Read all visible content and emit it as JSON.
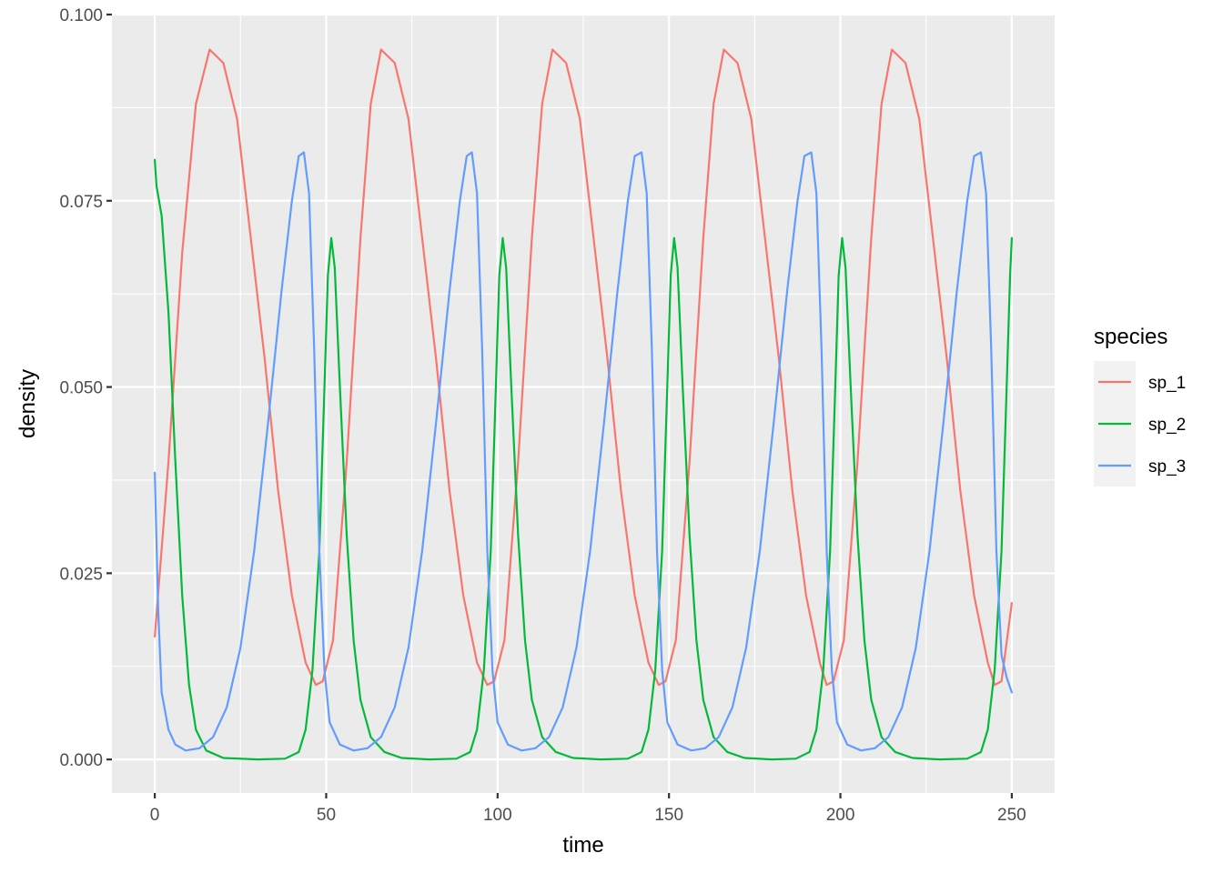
{
  "chart_data": {
    "type": "line",
    "title": "",
    "xlabel": "time",
    "ylabel": "density",
    "xlim": [
      -12.5,
      262.5
    ],
    "ylim": [
      -0.0045,
      0.1
    ],
    "x_ticks": [
      0,
      50,
      100,
      150,
      200,
      250
    ],
    "x_tick_labels": [
      "0",
      "50",
      "100",
      "150",
      "200",
      "250"
    ],
    "y_ticks": [
      0,
      0.025,
      0.05,
      0.075,
      0.1
    ],
    "y_tick_labels": [
      "0.000",
      "0.025",
      "0.050",
      "0.075",
      "0.100"
    ],
    "grid": true,
    "legend_title": "species",
    "legend_position": "right",
    "series": [
      {
        "name": "sp_1",
        "color": "#F8766D",
        "points": [
          [
            0,
            0.0165
          ],
          [
            4,
            0.04
          ],
          [
            8,
            0.068
          ],
          [
            12,
            0.088
          ],
          [
            16,
            0.0953
          ],
          [
            20,
            0.0935
          ],
          [
            24,
            0.086
          ],
          [
            28,
            0.07
          ],
          [
            32,
            0.054
          ],
          [
            36,
            0.036
          ],
          [
            40,
            0.022
          ],
          [
            44,
            0.013
          ],
          [
            47,
            0.01
          ],
          [
            49,
            0.0105
          ],
          [
            52,
            0.016
          ],
          [
            56,
            0.04
          ],
          [
            60,
            0.07
          ],
          [
            63,
            0.088
          ],
          [
            66,
            0.0953
          ],
          [
            70,
            0.0935
          ],
          [
            74,
            0.086
          ],
          [
            78,
            0.07
          ],
          [
            82,
            0.054
          ],
          [
            86,
            0.036
          ],
          [
            90,
            0.022
          ],
          [
            94,
            0.013
          ],
          [
            97,
            0.01
          ],
          [
            99,
            0.0105
          ],
          [
            102,
            0.016
          ],
          [
            106,
            0.04
          ],
          [
            110,
            0.07
          ],
          [
            113,
            0.088
          ],
          [
            116,
            0.0953
          ],
          [
            120,
            0.0935
          ],
          [
            124,
            0.086
          ],
          [
            128,
            0.07
          ],
          [
            132,
            0.054
          ],
          [
            136,
            0.036
          ],
          [
            140,
            0.022
          ],
          [
            144,
            0.013
          ],
          [
            147,
            0.01
          ],
          [
            149,
            0.0105
          ],
          [
            152,
            0.016
          ],
          [
            156,
            0.04
          ],
          [
            160,
            0.07
          ],
          [
            163,
            0.088
          ],
          [
            166,
            0.0953
          ],
          [
            170,
            0.0935
          ],
          [
            174,
            0.086
          ],
          [
            178,
            0.07
          ],
          [
            182,
            0.054
          ],
          [
            186,
            0.036
          ],
          [
            190,
            0.022
          ],
          [
            194,
            0.013
          ],
          [
            196,
            0.01
          ],
          [
            198,
            0.0105
          ],
          [
            201,
            0.016
          ],
          [
            205,
            0.04
          ],
          [
            209,
            0.07
          ],
          [
            212,
            0.088
          ],
          [
            215,
            0.0953
          ],
          [
            219,
            0.0935
          ],
          [
            223,
            0.086
          ],
          [
            227,
            0.07
          ],
          [
            231,
            0.054
          ],
          [
            235,
            0.036
          ],
          [
            239,
            0.022
          ],
          [
            243,
            0.013
          ],
          [
            245,
            0.01
          ],
          [
            247,
            0.0105
          ],
          [
            250,
            0.021
          ]
        ]
      },
      {
        "name": "sp_2",
        "color": "#00BA38",
        "points": [
          [
            0,
            0.0805
          ],
          [
            0.5,
            0.077
          ],
          [
            2,
            0.073
          ],
          [
            4,
            0.06
          ],
          [
            6,
            0.04
          ],
          [
            8,
            0.022
          ],
          [
            10,
            0.01
          ],
          [
            12,
            0.004
          ],
          [
            15,
            0.0012
          ],
          [
            20,
            0.0002
          ],
          [
            30,
            0.0
          ],
          [
            38,
            0.0001
          ],
          [
            42,
            0.001
          ],
          [
            44,
            0.004
          ],
          [
            46,
            0.012
          ],
          [
            48,
            0.028
          ],
          [
            49.5,
            0.05
          ],
          [
            50.5,
            0.065
          ],
          [
            51.5,
            0.07
          ],
          [
            52.5,
            0.066
          ],
          [
            54,
            0.05
          ],
          [
            56,
            0.03
          ],
          [
            58,
            0.016
          ],
          [
            60,
            0.008
          ],
          [
            63,
            0.003
          ],
          [
            67,
            0.001
          ],
          [
            72,
            0.0002
          ],
          [
            80,
            0.0
          ],
          [
            88,
            0.0001
          ],
          [
            92,
            0.001
          ],
          [
            94,
            0.004
          ],
          [
            96,
            0.012
          ],
          [
            98,
            0.028
          ],
          [
            99.5,
            0.05
          ],
          [
            100.5,
            0.065
          ],
          [
            101.5,
            0.07
          ],
          [
            102.5,
            0.066
          ],
          [
            104,
            0.05
          ],
          [
            106,
            0.03
          ],
          [
            108,
            0.016
          ],
          [
            110,
            0.008
          ],
          [
            113,
            0.003
          ],
          [
            117,
            0.001
          ],
          [
            122,
            0.0002
          ],
          [
            130,
            0.0
          ],
          [
            138,
            0.0001
          ],
          [
            142,
            0.001
          ],
          [
            144,
            0.004
          ],
          [
            146,
            0.012
          ],
          [
            148,
            0.028
          ],
          [
            149.5,
            0.05
          ],
          [
            150.5,
            0.065
          ],
          [
            151.5,
            0.07
          ],
          [
            152.5,
            0.066
          ],
          [
            154,
            0.05
          ],
          [
            156,
            0.03
          ],
          [
            158,
            0.016
          ],
          [
            160,
            0.008
          ],
          [
            163,
            0.003
          ],
          [
            167,
            0.001
          ],
          [
            172,
            0.0002
          ],
          [
            180,
            0.0
          ],
          [
            187,
            0.0001
          ],
          [
            191,
            0.001
          ],
          [
            193,
            0.004
          ],
          [
            195,
            0.012
          ],
          [
            197,
            0.028
          ],
          [
            198.5,
            0.05
          ],
          [
            199.5,
            0.065
          ],
          [
            200.5,
            0.07
          ],
          [
            201.5,
            0.066
          ],
          [
            203,
            0.05
          ],
          [
            205,
            0.03
          ],
          [
            207,
            0.016
          ],
          [
            209,
            0.008
          ],
          [
            212,
            0.003
          ],
          [
            216,
            0.001
          ],
          [
            221,
            0.0002
          ],
          [
            229,
            0.0
          ],
          [
            237,
            0.0001
          ],
          [
            241,
            0.001
          ],
          [
            243,
            0.004
          ],
          [
            245,
            0.012
          ],
          [
            247,
            0.028
          ],
          [
            248.5,
            0.05
          ],
          [
            249.5,
            0.065
          ],
          [
            250,
            0.07
          ]
        ]
      },
      {
        "name": "sp_3",
        "color": "#619CFF",
        "points": [
          [
            0,
            0.0385
          ],
          [
            1,
            0.02
          ],
          [
            2,
            0.009
          ],
          [
            4,
            0.004
          ],
          [
            6,
            0.002
          ],
          [
            9,
            0.0012
          ],
          [
            13,
            0.0015
          ],
          [
            17,
            0.003
          ],
          [
            21,
            0.007
          ],
          [
            25,
            0.015
          ],
          [
            29,
            0.028
          ],
          [
            33,
            0.045
          ],
          [
            37,
            0.063
          ],
          [
            40,
            0.075
          ],
          [
            42,
            0.081
          ],
          [
            43.5,
            0.0815
          ],
          [
            45,
            0.076
          ],
          [
            46.5,
            0.055
          ],
          [
            48,
            0.028
          ],
          [
            49.5,
            0.012
          ],
          [
            51,
            0.005
          ],
          [
            54,
            0.002
          ],
          [
            58,
            0.0012
          ],
          [
            62,
            0.0015
          ],
          [
            66,
            0.003
          ],
          [
            70,
            0.007
          ],
          [
            74,
            0.015
          ],
          [
            78,
            0.028
          ],
          [
            82,
            0.045
          ],
          [
            86,
            0.063
          ],
          [
            89,
            0.075
          ],
          [
            91,
            0.081
          ],
          [
            92.5,
            0.0815
          ],
          [
            94,
            0.076
          ],
          [
            95.5,
            0.055
          ],
          [
            97,
            0.028
          ],
          [
            98.5,
            0.012
          ],
          [
            100,
            0.005
          ],
          [
            103,
            0.002
          ],
          [
            107,
            0.0012
          ],
          [
            111,
            0.0015
          ],
          [
            115,
            0.003
          ],
          [
            119,
            0.007
          ],
          [
            123,
            0.015
          ],
          [
            127,
            0.028
          ],
          [
            131,
            0.045
          ],
          [
            135,
            0.063
          ],
          [
            138,
            0.075
          ],
          [
            140,
            0.081
          ],
          [
            142,
            0.0815
          ],
          [
            143.5,
            0.076
          ],
          [
            145,
            0.055
          ],
          [
            146.5,
            0.028
          ],
          [
            148,
            0.012
          ],
          [
            149.5,
            0.005
          ],
          [
            152.5,
            0.002
          ],
          [
            156.5,
            0.0012
          ],
          [
            160.5,
            0.0015
          ],
          [
            164.5,
            0.003
          ],
          [
            168.5,
            0.007
          ],
          [
            172.5,
            0.015
          ],
          [
            176.5,
            0.028
          ],
          [
            180.5,
            0.045
          ],
          [
            184.5,
            0.063
          ],
          [
            187.5,
            0.075
          ],
          [
            189.5,
            0.081
          ],
          [
            191.5,
            0.0815
          ],
          [
            193,
            0.076
          ],
          [
            194.5,
            0.055
          ],
          [
            196,
            0.028
          ],
          [
            197.5,
            0.012
          ],
          [
            199,
            0.005
          ],
          [
            202,
            0.002
          ],
          [
            206,
            0.0012
          ],
          [
            210,
            0.0015
          ],
          [
            214,
            0.003
          ],
          [
            218,
            0.007
          ],
          [
            222,
            0.015
          ],
          [
            226,
            0.028
          ],
          [
            230,
            0.045
          ],
          [
            234,
            0.063
          ],
          [
            237,
            0.075
          ],
          [
            239,
            0.081
          ],
          [
            241,
            0.0815
          ],
          [
            242.5,
            0.076
          ],
          [
            244,
            0.055
          ],
          [
            245.5,
            0.028
          ],
          [
            247,
            0.014
          ],
          [
            248.5,
            0.011
          ],
          [
            250,
            0.009
          ]
        ]
      }
    ]
  }
}
